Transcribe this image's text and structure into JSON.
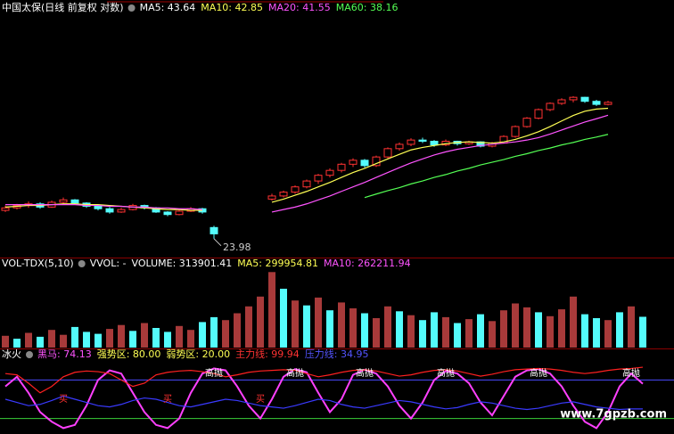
{
  "chart_data": [
    {
      "type": "candlestick",
      "header": [
        {
          "text": "中国太保(日线 前复权 对数)",
          "color": "#ffffff"
        },
        {
          "text": "MA5: 43.64",
          "color": "#ffffff"
        },
        {
          "text": "MA10: 42.85",
          "color": "#ffff54"
        },
        {
          "text": "MA20: 41.55",
          "color": "#ff54ff"
        },
        {
          "text": "MA60: 38.16",
          "color": "#54ff54"
        }
      ],
      "candles": [
        [
          27.2,
          27.8,
          27.0,
          27.5
        ],
        [
          27.5,
          28.0,
          27.3,
          27.8
        ],
        [
          27.8,
          28.3,
          27.5,
          28.0
        ],
        [
          28.0,
          28.2,
          27.4,
          27.6
        ],
        [
          27.6,
          28.4,
          27.5,
          28.2
        ],
        [
          28.2,
          28.8,
          28.0,
          28.5
        ],
        [
          28.5,
          28.6,
          27.9,
          28.1
        ],
        [
          28.1,
          28.2,
          27.5,
          27.7
        ],
        [
          27.7,
          27.9,
          27.2,
          27.4
        ],
        [
          27.4,
          27.6,
          26.8,
          27.0
        ],
        [
          27.0,
          27.5,
          26.9,
          27.3
        ],
        [
          27.3,
          28.0,
          27.2,
          27.8
        ],
        [
          27.8,
          27.9,
          27.3,
          27.5
        ],
        [
          27.5,
          27.6,
          26.9,
          27.0
        ],
        [
          27.0,
          27.1,
          26.5,
          26.7
        ],
        [
          26.7,
          27.3,
          26.6,
          27.1
        ],
        [
          27.1,
          27.6,
          27.0,
          27.4
        ],
        [
          27.4,
          27.5,
          26.8,
          27.0
        ],
        [
          25.2,
          25.4,
          23.98,
          24.5
        ],
        null,
        null,
        null,
        null,
        [
          28.6,
          29.3,
          28.4,
          29.0
        ],
        [
          29.0,
          29.7,
          28.8,
          29.5
        ],
        [
          29.5,
          30.4,
          29.3,
          30.2
        ],
        [
          30.2,
          31.2,
          30.0,
          31.0
        ],
        [
          31.0,
          32.0,
          30.6,
          31.8
        ],
        [
          31.8,
          32.8,
          31.5,
          32.5
        ],
        [
          32.5,
          33.6,
          32.2,
          33.4
        ],
        [
          33.4,
          34.3,
          33.0,
          34.0
        ],
        [
          34.0,
          34.2,
          32.9,
          33.2
        ],
        [
          33.2,
          34.7,
          33.0,
          34.5
        ],
        [
          34.5,
          36.0,
          34.3,
          35.8
        ],
        [
          35.8,
          36.8,
          35.5,
          36.5
        ],
        [
          36.5,
          37.5,
          36.2,
          37.2
        ],
        [
          37.2,
          37.6,
          36.7,
          37.0
        ],
        [
          37.0,
          37.2,
          36.1,
          36.4
        ],
        [
          36.4,
          37.3,
          36.2,
          37.0
        ],
        [
          37.0,
          37.1,
          36.3,
          36.6
        ],
        [
          36.6,
          37.1,
          36.4,
          36.9
        ],
        [
          36.9,
          37.0,
          36.0,
          36.2
        ],
        [
          36.2,
          36.9,
          36.0,
          36.7
        ],
        [
          36.7,
          38.0,
          36.6,
          37.8
        ],
        [
          37.8,
          39.7,
          37.6,
          39.5
        ],
        [
          39.5,
          41.2,
          39.3,
          41.0
        ],
        [
          41.0,
          42.8,
          40.8,
          42.6
        ],
        [
          42.6,
          44.0,
          42.3,
          43.8
        ],
        [
          43.8,
          44.8,
          43.5,
          44.5
        ],
        [
          44.5,
          45.2,
          44.0,
          45.0
        ],
        [
          45.0,
          45.1,
          43.9,
          44.2
        ],
        [
          44.2,
          44.5,
          43.3,
          43.6
        ],
        [
          43.6,
          44.3,
          43.4,
          44.0
        ]
      ],
      "up_color": "#ff3232",
      "down_color": "#54fcfc",
      "series": [
        {
          "color": "#ffff54",
          "values": [
            27.6,
            27.7,
            27.8,
            27.8,
            27.9,
            28.0,
            28.0,
            27.9,
            27.9,
            27.8,
            27.7,
            27.6,
            27.5,
            27.4,
            27.3,
            27.3,
            27.2,
            27.2,
            null,
            null,
            null,
            null,
            null,
            28.2,
            28.6,
            29.1,
            29.6,
            30.2,
            30.8,
            31.5,
            32.2,
            32.8,
            33.5,
            34.2,
            34.9,
            35.6,
            36.0,
            36.3,
            36.6,
            36.8,
            36.9,
            36.8,
            36.7,
            36.9,
            37.3,
            37.9,
            38.6,
            39.5,
            40.5,
            41.5,
            42.3,
            42.7,
            42.85
          ]
        },
        {
          "color": "#ff54ff",
          "values": [
            27.9,
            27.9,
            27.9,
            27.9,
            27.9,
            27.9,
            27.9,
            27.8,
            27.8,
            27.7,
            27.7,
            27.6,
            27.6,
            27.5,
            27.5,
            27.4,
            27.4,
            27.3,
            null,
            null,
            null,
            null,
            null,
            27.0,
            27.3,
            27.6,
            28.0,
            28.5,
            29.0,
            29.6,
            30.2,
            30.8,
            31.5,
            32.2,
            32.9,
            33.6,
            34.2,
            34.8,
            35.3,
            35.7,
            36.0,
            36.3,
            36.5,
            36.7,
            36.9,
            37.2,
            37.6,
            38.2,
            38.9,
            39.6,
            40.3,
            40.9,
            41.55
          ]
        },
        {
          "color": "#54ff54",
          "values": [
            null,
            null,
            null,
            null,
            null,
            null,
            null,
            null,
            null,
            null,
            null,
            null,
            null,
            null,
            null,
            null,
            null,
            null,
            null,
            null,
            null,
            null,
            null,
            null,
            null,
            null,
            null,
            null,
            null,
            null,
            null,
            28.8,
            29.25,
            29.7,
            30.1,
            30.6,
            31.0,
            31.5,
            31.9,
            32.4,
            32.8,
            33.3,
            33.7,
            34.1,
            34.6,
            35.0,
            35.5,
            35.9,
            36.4,
            36.8,
            37.3,
            37.7,
            38.16
          ]
        }
      ],
      "ylim": [
        22.4,
        64.1
      ],
      "log": true
    },
    {
      "type": "volume",
      "header": [
        {
          "text": "VOL-TDX(5,10)",
          "color": "#ffffff"
        },
        {
          "text": "VVOL: -",
          "color": "#ffffff"
        },
        {
          "text": "VOLUME: 313901.41",
          "color": "#ffffff"
        },
        {
          "text": "MA5: 299954.81",
          "color": "#ffff54"
        },
        {
          "text": "MA10: 262211.94",
          "color": "#ff54ff"
        }
      ],
      "values": [
        120000,
        90000,
        150000,
        110000,
        180000,
        130000,
        210000,
        160000,
        140000,
        190000,
        230000,
        170000,
        250000,
        200000,
        160000,
        220000,
        180000,
        260000,
        310000,
        280000,
        350000,
        420000,
        520000,
        770000,
        600000,
        480000,
        430000,
        510000,
        380000,
        460000,
        400000,
        350000,
        300000,
        420000,
        370000,
        330000,
        280000,
        360000,
        310000,
        250000,
        290000,
        340000,
        270000,
        380000,
        450000,
        410000,
        360000,
        320000,
        390000,
        520000,
        340000,
        300000,
        280000,
        360000,
        420000,
        313901.41
      ],
      "up": [
        1,
        0,
        1,
        0,
        1,
        1,
        0,
        0,
        0,
        1,
        1,
        0,
        1,
        0,
        0,
        1,
        1,
        0,
        0,
        1,
        1,
        1,
        1,
        1,
        0,
        1,
        0,
        1,
        0,
        1,
        1,
        0,
        1,
        1,
        0,
        1,
        0,
        0,
        1,
        0,
        1,
        0,
        1,
        1,
        1,
        1,
        0,
        1,
        1,
        1,
        0,
        0,
        1,
        0,
        1,
        0
      ],
      "up_color": "#a83a3a",
      "down_color": "#54fcfc",
      "ylim": [
        0,
        800000
      ]
    },
    {
      "type": "oscillator",
      "header": [
        {
          "text": "冰火",
          "color": "#ffffff"
        },
        {
          "text": "黑马: 74.13",
          "color": "#ff54ff"
        },
        {
          "text": "强势区: 80.00",
          "color": "#ffff54"
        },
        {
          "text": "弱势区: 20.00",
          "color": "#ffff54"
        },
        {
          "text": "主力线: 99.94",
          "color": "#ff3232"
        },
        {
          "text": "压力线: 34.95",
          "color": "#5454ff"
        }
      ],
      "series": [
        {
          "color": "#ff40ff",
          "values": [
            70,
            85,
            60,
            30,
            15,
            5,
            10,
            40,
            80,
            95,
            90,
            60,
            30,
            10,
            5,
            20,
            60,
            90,
            98,
            95,
            70,
            40,
            20,
            50,
            85,
            97,
            92,
            60,
            30,
            50,
            88,
            96,
            90,
            70,
            40,
            20,
            45,
            80,
            94,
            90,
            75,
            45,
            25,
            55,
            85,
            95,
            97,
            90,
            70,
            40,
            15,
            5,
            30,
            70,
            90,
            74.13
          ]
        },
        {
          "color": "#ff2020",
          "values": [
            90,
            88,
            75,
            60,
            70,
            85,
            92,
            94,
            93,
            90,
            80,
            70,
            75,
            88,
            92,
            94,
            95,
            93,
            90,
            85,
            88,
            92,
            94,
            95,
            96,
            95,
            90,
            85,
            88,
            92,
            95,
            96,
            94,
            90,
            86,
            88,
            92,
            95,
            96,
            94,
            90,
            86,
            89,
            93,
            96,
            97,
            98,
            97,
            95,
            92,
            90,
            92,
            95,
            97,
            98,
            99.94
          ]
        },
        {
          "color": "#3a3aff",
          "values": [
            50,
            45,
            40,
            42,
            48,
            55,
            50,
            45,
            40,
            38,
            42,
            48,
            52,
            50,
            45,
            40,
            38,
            42,
            46,
            50,
            48,
            44,
            40,
            38,
            36,
            40,
            45,
            50,
            48,
            42,
            38,
            36,
            40,
            44,
            48,
            46,
            42,
            38,
            35,
            37,
            42,
            46,
            44,
            40,
            36,
            34,
            36,
            40,
            44,
            46,
            42,
            38,
            36,
            34,
            35,
            34.95
          ]
        }
      ],
      "levels": [
        {
          "value": 80,
          "color": "#4a4aff"
        },
        {
          "value": 20,
          "color": "#3ad03a"
        }
      ],
      "signals": [
        {
          "index": 18,
          "label": "高抛"
        },
        {
          "index": 25,
          "label": "高抛"
        },
        {
          "index": 31,
          "label": "高抛"
        },
        {
          "index": 38,
          "label": "高抛"
        },
        {
          "index": 46,
          "label": "高抛"
        },
        {
          "index": 54,
          "label": "高抛"
        },
        {
          "index": 5,
          "label": "买"
        },
        {
          "index": 14,
          "label": "买"
        },
        {
          "index": 22,
          "label": "买"
        }
      ],
      "signal_color": "#ffffff",
      "ylim": [
        0,
        100
      ]
    }
  ],
  "watermark": "www.7gpzb.com"
}
